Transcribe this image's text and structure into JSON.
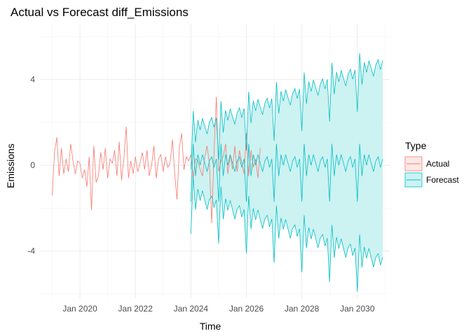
{
  "chart_data": {
    "type": "line",
    "title": "Actual vs Forecast diff_Emissions",
    "xlabel": "Time",
    "ylabel": "Emissions",
    "x_ticks": [
      "Jan 2020",
      "Jan 2022",
      "Jan 2024",
      "Jan 2026",
      "Jan 2028",
      "Jan 2030"
    ],
    "y_ticks": [
      -4,
      0,
      4
    ],
    "xlim": [
      "2018-08",
      "2031-03"
    ],
    "ylim": [
      -6.2,
      6.6
    ],
    "grid": true,
    "legend": {
      "title": "Type",
      "position": "right"
    },
    "series": [
      {
        "name": "Actual",
        "color": "#F8766D",
        "start": "2019-01",
        "frequency": "monthly",
        "values": [
          -1.4,
          0.6,
          1.3,
          -0.5,
          0.8,
          -0.4,
          0.3,
          -0.3,
          1.0,
          0.2,
          -0.4,
          0.2,
          0.1,
          -0.6,
          -0.2,
          -1.0,
          0.4,
          -2.1,
          0.9,
          -0.8,
          -0.5,
          0.6,
          -0.2,
          0.8,
          -0.6,
          0.3,
          0.1,
          0.7,
          -0.5,
          1.1,
          -0.7,
          0.3,
          1.8,
          -0.6,
          0.2,
          -0.4,
          0.4,
          -0.3,
          0.1,
          0.6,
          -0.2,
          0.7,
          -0.5,
          0.0,
          0.9,
          -0.6,
          0.3,
          0.5,
          -0.3,
          0.4,
          -0.1,
          0.1,
          1.2,
          -0.4,
          -1.6,
          0.8,
          1.5,
          -0.2,
          0.4,
          0.2,
          0.5,
          -0.6,
          0.3,
          0.2,
          -0.2,
          -0.5,
          0.4,
          0.9,
          0.1,
          -2.7,
          0.6,
          3.2,
          -0.3,
          0.2,
          0.4,
          1.0,
          -0.4,
          0.5,
          -0.2,
          0.9,
          -0.3,
          0.7,
          0.1,
          -0.4,
          1.5,
          -0.5,
          0.7,
          -0.1,
          0.3,
          -0.6,
          0.8
        ]
      },
      {
        "name": "Forecast",
        "color": "#00BFC4",
        "start": "2024-01",
        "end": "2030-12",
        "frequency": "monthly",
        "seasonal_pattern": [
          -1.7,
          1.0,
          -0.5,
          0.5,
          0.0,
          0.5,
          0.1,
          -0.3,
          0.2,
          0.4,
          -0.1,
          0.3
        ],
        "interval_halfwidth_start": 1.5,
        "interval_halfwidth_end": 4.6,
        "interval_fill": "#CCF2F2"
      }
    ]
  }
}
